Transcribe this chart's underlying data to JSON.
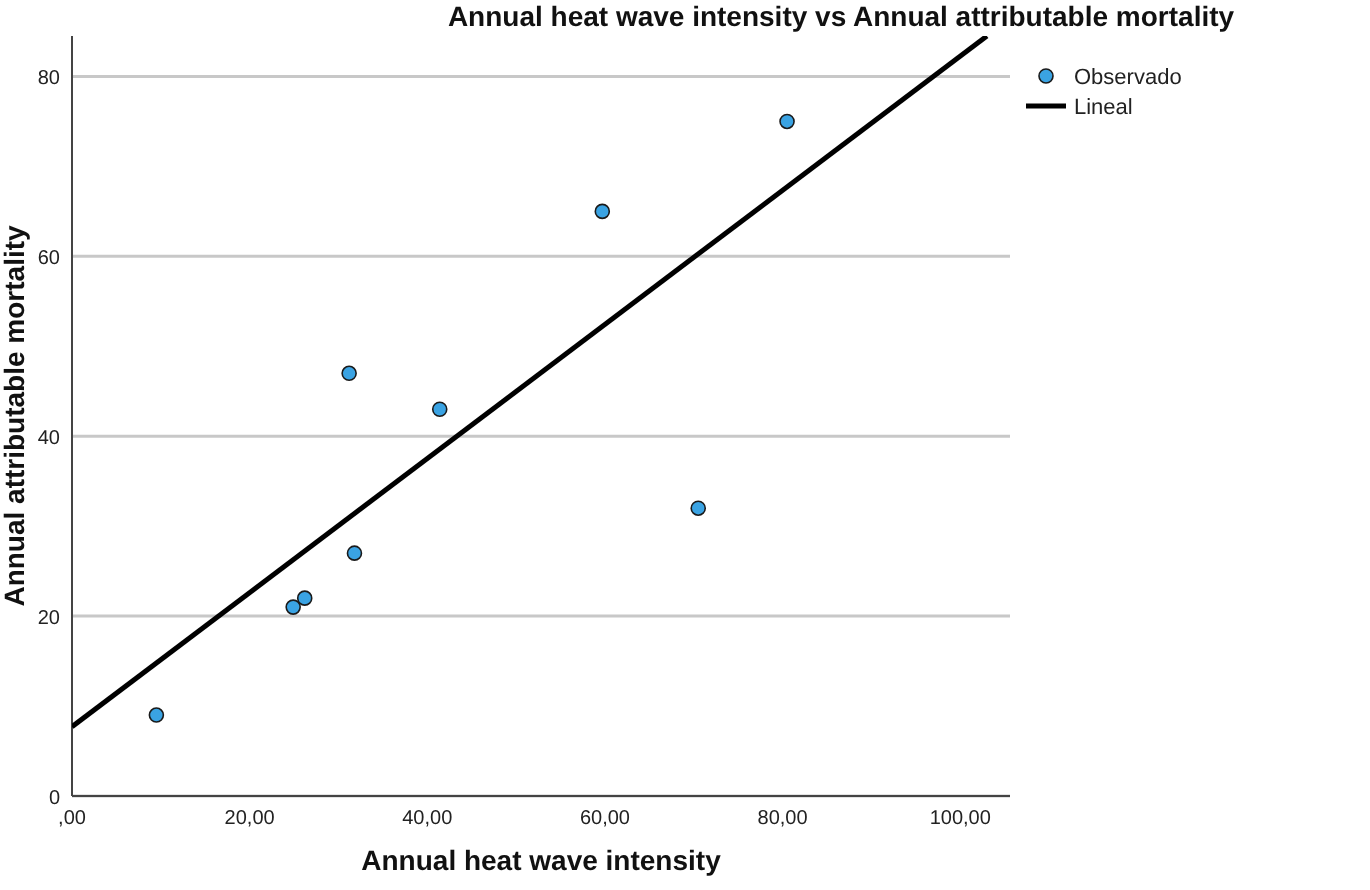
{
  "chart_data": {
    "type": "scatter",
    "title": "Annual heat wave intensity vs Annual attributable mortality",
    "xlabel": "Annual heat wave intensity",
    "ylabel": "Annual attributable mortality",
    "xlim": [
      0,
      105.6
    ],
    "ylim": [
      0,
      84.5
    ],
    "xticks": [
      {
        "value": 0,
        "label": ",00"
      },
      {
        "value": 20,
        "label": "20,00"
      },
      {
        "value": 40,
        "label": "40,00"
      },
      {
        "value": 60,
        "label": "60,00"
      },
      {
        "value": 80,
        "label": "80,00"
      },
      {
        "value": 100,
        "label": "100,00"
      }
    ],
    "yticks": [
      0,
      20,
      40,
      60,
      80
    ],
    "grid": "y",
    "legend": "top right",
    "series": [
      {
        "name": "Observado",
        "color": "#3aa3e3",
        "marker": "circle",
        "x": [
          9.5,
          24.9,
          26.2,
          31.2,
          31.8,
          41.4,
          59.7,
          70.5,
          80.5
        ],
        "values": [
          9,
          21,
          22,
          47,
          27,
          43,
          65,
          32,
          75
        ]
      },
      {
        "name": "Lineal",
        "type": "line",
        "color": "#000000",
        "marker": "none",
        "x": [
          0,
          103
        ],
        "values": [
          7.7,
          84.5
        ]
      }
    ]
  }
}
